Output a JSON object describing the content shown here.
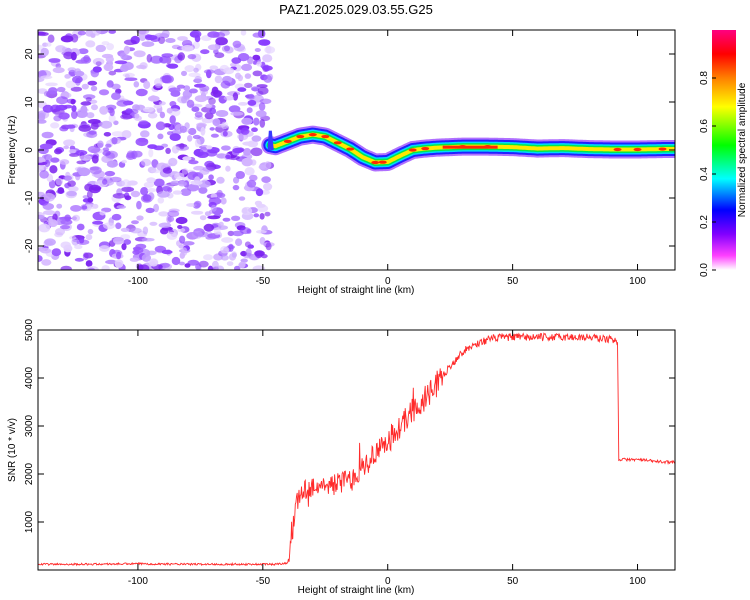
{
  "chart_data": [
    {
      "type": "heatmap",
      "title": "PAZ1.2025.029.03.55.G25",
      "xlabel": "Height of straight line (km)",
      "ylabel": "Frequency (Hz)",
      "xlim": [
        -140,
        115
      ],
      "ylim": [
        -25,
        25
      ],
      "xticks": [
        -100,
        -50,
        0,
        50,
        100
      ],
      "yticks": [
        -20,
        -10,
        0,
        10,
        20
      ],
      "noise_region_x": [
        -140,
        -47
      ],
      "ridge": {
        "x": [
          -47,
          -45,
          -40,
          -35,
          -30,
          -25,
          -20,
          -15,
          -10,
          -5,
          0,
          5,
          10,
          15,
          20,
          25,
          30,
          40,
          50,
          60,
          70,
          80,
          90,
          100,
          110,
          115
        ],
        "freq": [
          1.0,
          0.8,
          1.8,
          2.8,
          3.2,
          2.8,
          1.5,
          0.2,
          -1.5,
          -2.6,
          -2.5,
          -1.2,
          0.0,
          0.3,
          0.5,
          0.6,
          0.7,
          0.7,
          0.6,
          0.3,
          0.4,
          0.2,
          0.1,
          0.1,
          0.2,
          0.2
        ]
      },
      "colorbar": {
        "label": "Normalized spectral amplitude",
        "ticks": [
          0.0,
          0.2,
          0.4,
          0.6,
          0.8
        ],
        "range": [
          0,
          1
        ],
        "colormap": [
          "#ff00ff",
          "#8000ff",
          "#0000ff",
          "#00ffff",
          "#00ff00",
          "#ffff00",
          "#ff8000",
          "#ff0000",
          "#ff0080"
        ]
      }
    },
    {
      "type": "line",
      "xlabel": "Height of straight line (km)",
      "ylabel": "SNR (10 * v/v)",
      "xlim": [
        -140,
        115
      ],
      "ylim": [
        0,
        5000
      ],
      "xticks": [
        -100,
        -50,
        0,
        50,
        100
      ],
      "yticks": [
        1000,
        2000,
        3000,
        4000,
        5000
      ],
      "series": [
        {
          "name": "SNR",
          "color": "#ff2a2a",
          "x": [
            -140,
            -120,
            -100,
            -80,
            -60,
            -45,
            -40,
            -39,
            -37,
            -35,
            -30,
            -25,
            -20,
            -15,
            -10,
            -5,
            0,
            5,
            10,
            15,
            20,
            25,
            30,
            35,
            40,
            45,
            50,
            60,
            70,
            80,
            90,
            92,
            92.5,
            95,
            100,
            110,
            115
          ],
          "y": [
            120,
            120,
            130,
            120,
            120,
            120,
            150,
            400,
            1300,
            1600,
            1750,
            1750,
            1800,
            1900,
            2150,
            2400,
            2700,
            3000,
            3300,
            3550,
            3900,
            4250,
            4550,
            4700,
            4800,
            4850,
            4850,
            4850,
            4850,
            4850,
            4800,
            4750,
            2300,
            2300,
            2300,
            2250,
            2250
          ]
        }
      ]
    }
  ]
}
